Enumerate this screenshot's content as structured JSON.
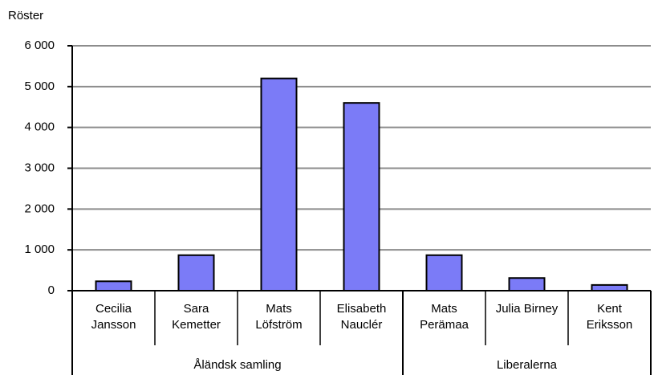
{
  "chart_data": {
    "type": "bar",
    "y_label": "Röster",
    "color": "#7b7bf7",
    "grid": true,
    "ylim": [
      0,
      6000
    ],
    "yticks": [
      0,
      {
        "value": 1000,
        "label": "1 000"
      },
      {
        "value": 2000,
        "label": "2 000"
      },
      {
        "value": 3000,
        "label": "3 000"
      },
      {
        "value": 4000,
        "label": "4 000"
      },
      {
        "value": 5000,
        "label": "5 000"
      },
      {
        "value": 6000,
        "label": "6 000"
      }
    ],
    "groups": [
      {
        "label": "Åländsk samling",
        "categories": [
          "Cecilia\nJansson",
          "Sara\nKemetter",
          "Mats\nLöfström",
          "Elisabeth\nNauclér"
        ],
        "values": [
          230,
          870,
          5200,
          4600
        ]
      },
      {
        "label": "Liberalerna",
        "categories": [
          "Mats\nPerämaa",
          "Julia Birney",
          "Kent\nEriksson"
        ],
        "values": [
          870,
          310,
          140
        ]
      }
    ]
  }
}
